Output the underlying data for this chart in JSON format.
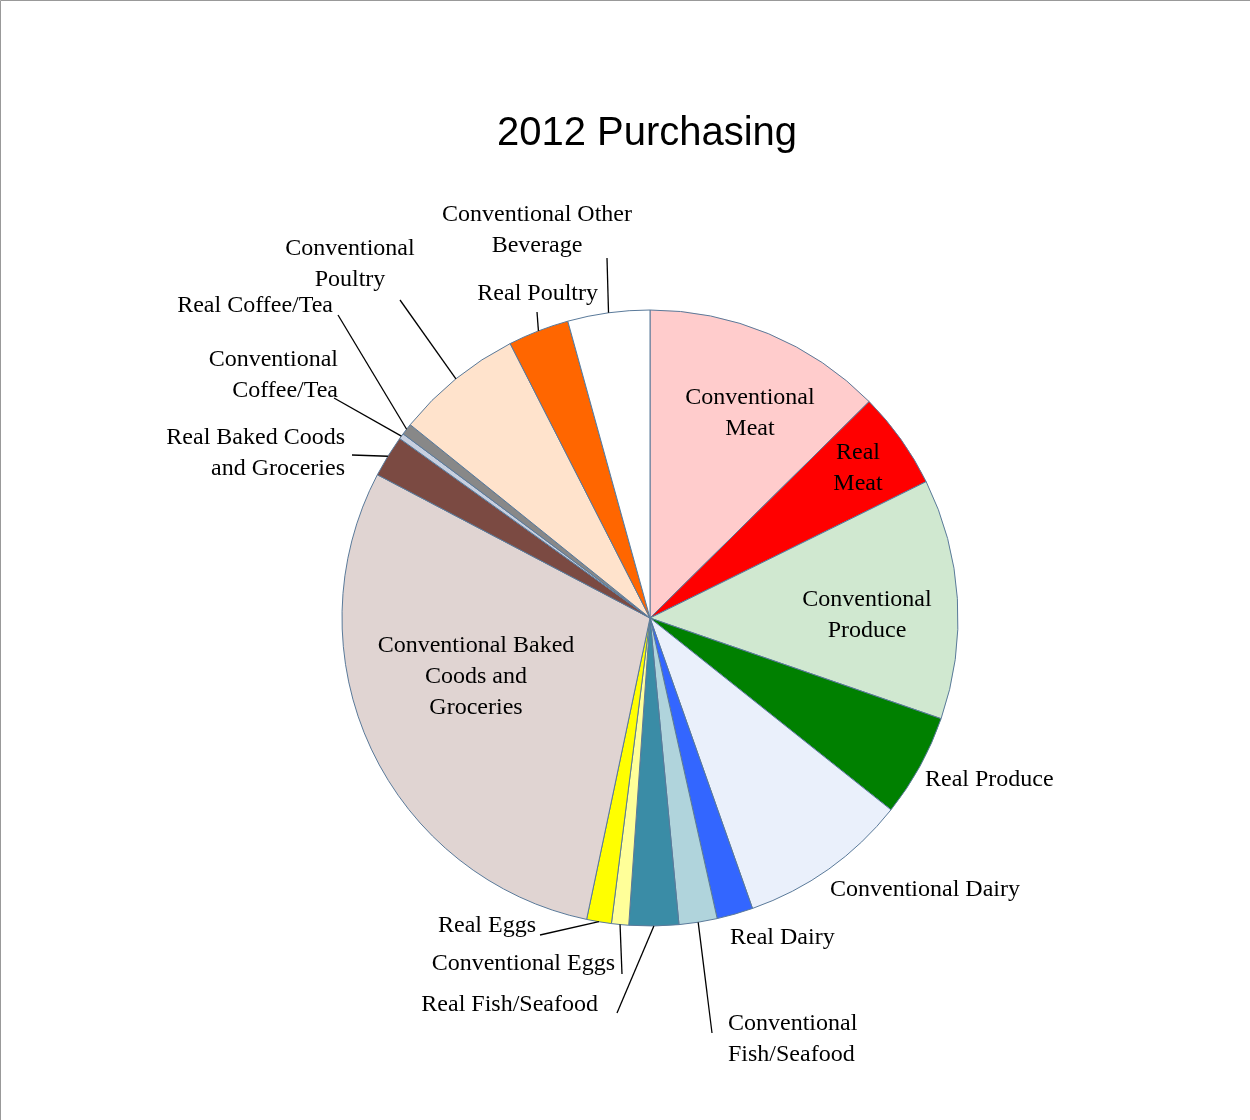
{
  "chart_data": {
    "type": "pie",
    "title": "2012 Purchasing",
    "categories": [
      "Conventional Meat",
      "Real Meat",
      "Conventional Produce",
      "Real Produce",
      "Conventional Dairy",
      "Real Dairy",
      "Conventional Fish/Seafood",
      "Real Fish/Seafood",
      "Conventional Eggs",
      "Real Eggs",
      "Conventional Baked Coods and Groceries",
      "Real Baked Coods and Groceries",
      "Conventional Coffee/Tea",
      "Real Coffee/Tea",
      "Conventional Poultry",
      "Real Poultry",
      "Conventional Other Beverage"
    ],
    "values": [
      12.6,
      5.1,
      12.6,
      5.4,
      8.9,
      1.9,
      2.0,
      2.6,
      0.9,
      1.3,
      29.4,
      2.2,
      0.3,
      0.6,
      6.7,
      3.2,
      4.3
    ],
    "colors": [
      "#ffcccc",
      "#ff0000",
      "#d0e8d0",
      "#008000",
      "#eaf0fb",
      "#3366ff",
      "#b0d4dc",
      "#3a8ca6",
      "#ffff99",
      "#ffff00",
      "#e0d4d2",
      "#7b4a42",
      "#c8d0e0",
      "#888888",
      "#ffe3cc",
      "#ff6600",
      "#ffffff"
    ]
  }
}
